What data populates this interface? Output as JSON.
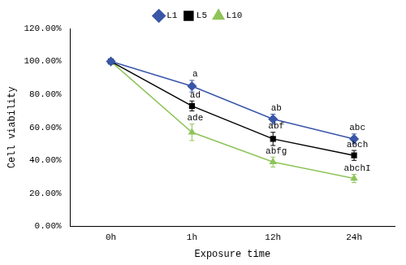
{
  "chart_data": {
    "type": "line",
    "x_label": "Exposure time",
    "y_label": "Cell viability",
    "categories": [
      "0h",
      "1h",
      "12h",
      "24h"
    ],
    "series": [
      {
        "name": "L1",
        "color": "#3a56a8",
        "marker": "diamond",
        "values": [
          100,
          85,
          65,
          53
        ],
        "errors": [
          0,
          3.5,
          3,
          3
        ]
      },
      {
        "name": "L5",
        "color": "#000000",
        "marker": "square",
        "values": [
          100,
          73,
          53,
          43
        ],
        "errors": [
          0,
          3,
          4,
          3
        ]
      },
      {
        "name": "L10",
        "color": "#8fc45a",
        "marker": "triangle",
        "values": [
          100,
          57,
          39,
          29
        ],
        "errors": [
          0,
          5,
          3,
          2.5
        ]
      }
    ],
    "annotations": [
      {
        "series": "L1",
        "category": "1h",
        "text": "a"
      },
      {
        "series": "L1",
        "category": "12h",
        "text": "ab"
      },
      {
        "series": "L1",
        "category": "24h",
        "text": "abc"
      },
      {
        "series": "L5",
        "category": "1h",
        "text": "ad"
      },
      {
        "series": "L5",
        "category": "12h",
        "text": "abf"
      },
      {
        "series": "L5",
        "category": "24h",
        "text": "abch"
      },
      {
        "series": "L10",
        "category": "1h",
        "text": "ade"
      },
      {
        "series": "L10",
        "category": "12h",
        "text": "abfg"
      },
      {
        "series": "L10",
        "category": "24h",
        "text": "abchI"
      }
    ],
    "ylim": [
      0,
      120
    ],
    "yticks": [
      {
        "value": 0,
        "label": "0.00%"
      },
      {
        "value": 20,
        "label": "20.00%"
      },
      {
        "value": 40,
        "label": "40.00%"
      },
      {
        "value": 60,
        "label": "60.00%"
      },
      {
        "value": 80,
        "label": "80.00%"
      },
      {
        "value": 100,
        "label": "100.00%"
      },
      {
        "value": 120,
        "label": "120.00%"
      }
    ],
    "grid": false,
    "legend": "top"
  }
}
